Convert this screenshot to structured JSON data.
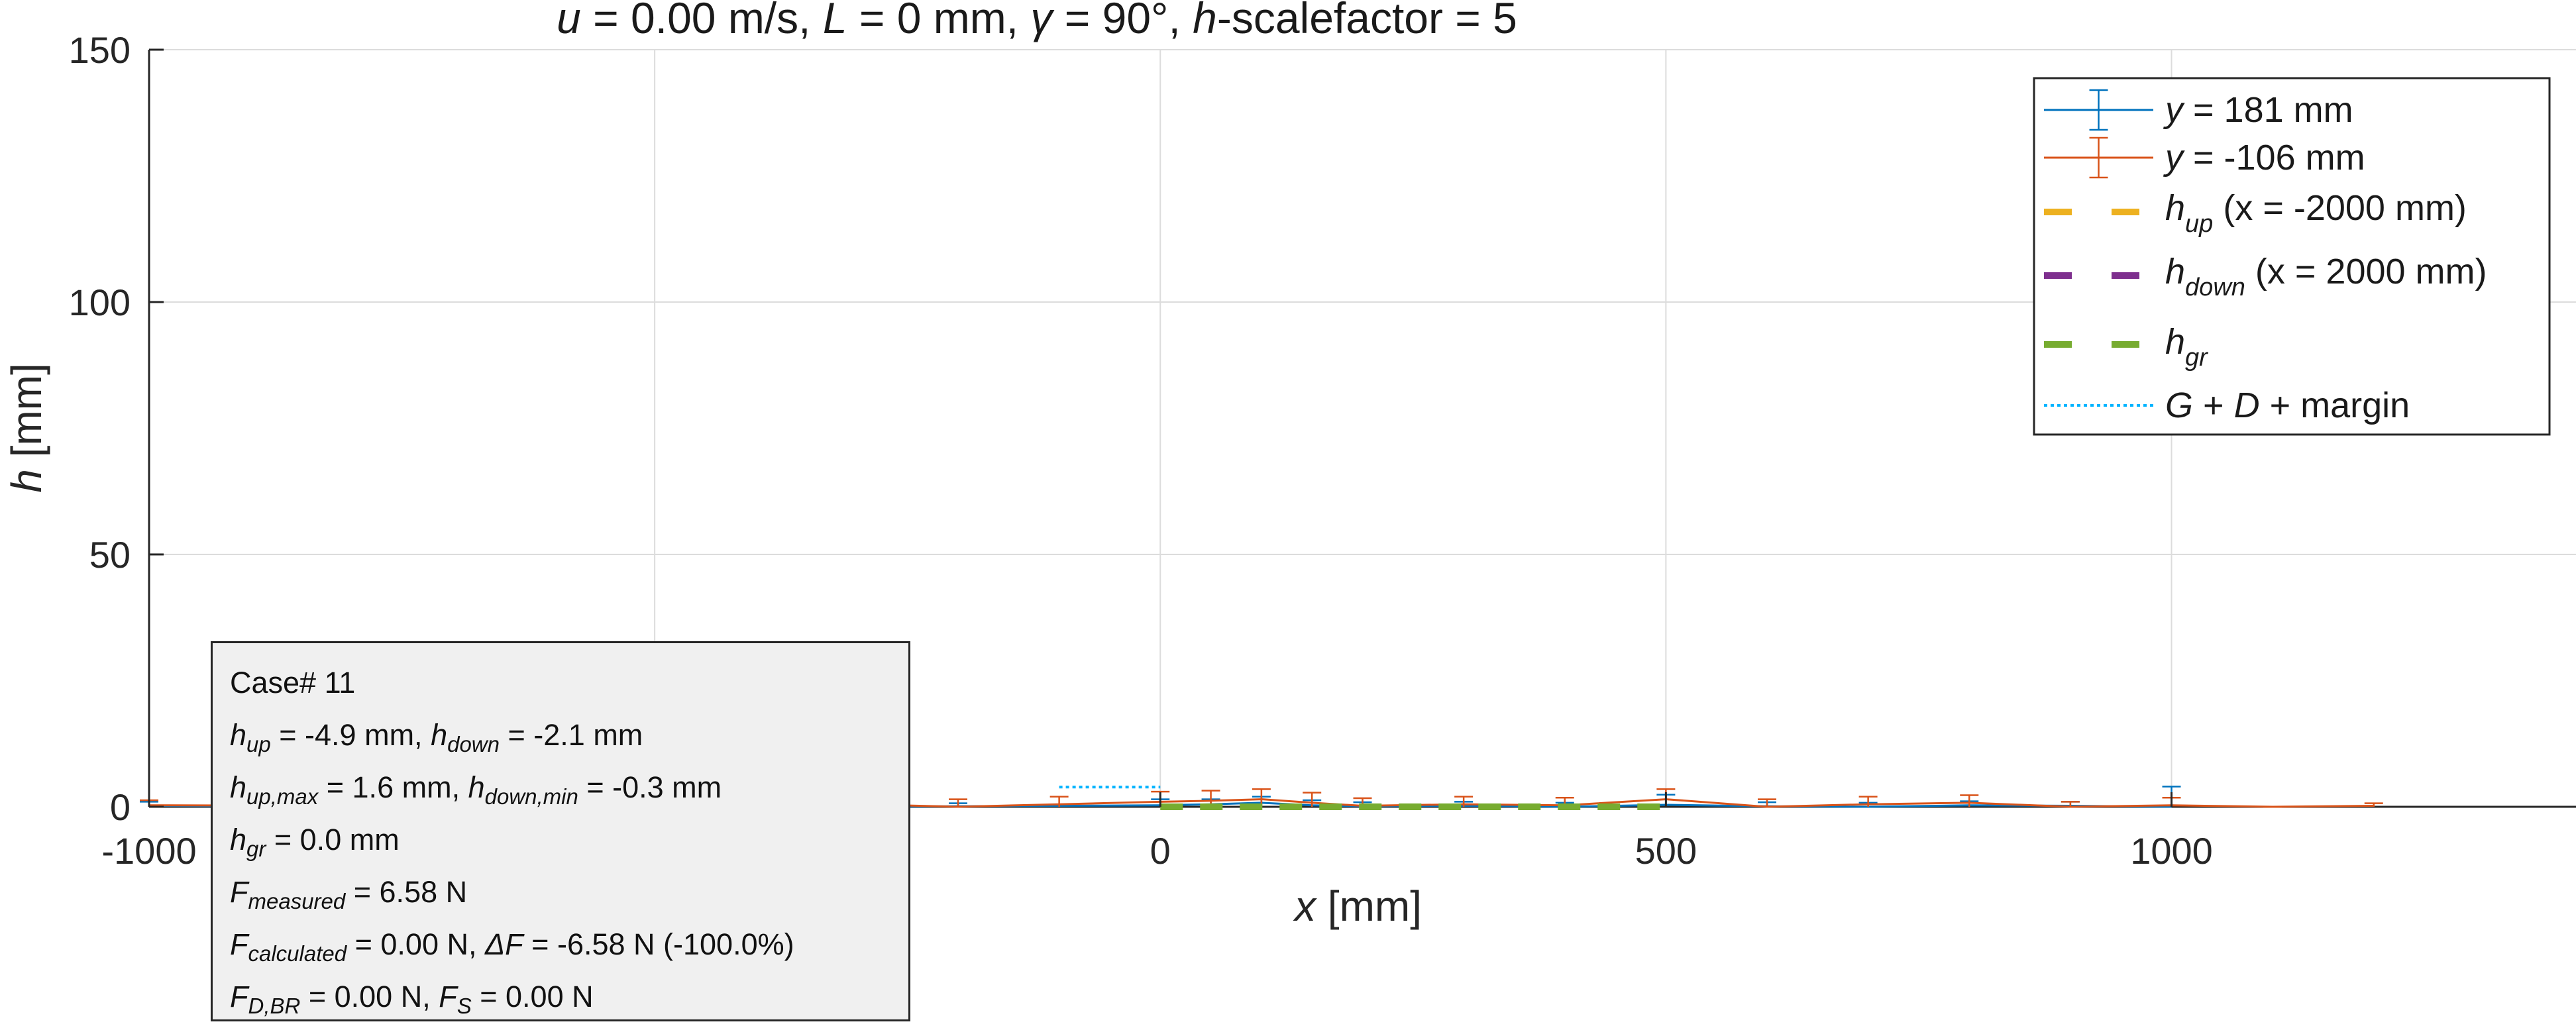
{
  "chart_data": {
    "type": "line",
    "title": "u = 0.00 m/s, L = 0 mm, γ = 90°, h-scalefactor = 5",
    "title_parts": {
      "u": "u",
      "u_rest": " = 0.00 m/s, ",
      "L": "L",
      "L_rest": " = 0 mm, ",
      "gamma": "γ",
      "gamma_rest": " = 90°, ",
      "h": "h",
      "h_rest": "-scalefactor = 5"
    },
    "xlabel": "x [mm]",
    "xlabel_parts": {
      "sym": "x",
      "unit": " [mm]"
    },
    "ylabel": "h [mm]",
    "ylabel_parts": {
      "sym": "h",
      "unit": " [mm]"
    },
    "xlim": [
      -1000,
      1400
    ],
    "ylim": [
      0,
      150
    ],
    "xticks": [
      -1000,
      0,
      500,
      1000
    ],
    "xtick_labels": [
      "-1000",
      "0",
      "500",
      "1000"
    ],
    "yticks": [
      0,
      50,
      100,
      150
    ],
    "ytick_labels": [
      "0",
      "50",
      "100",
      "150"
    ],
    "grid": true,
    "legend_position": "top-right",
    "series": [
      {
        "name": "y = 181 mm",
        "name_parts": {
          "sym": "y",
          "rest": " = 181 mm"
        },
        "color": "#0072bd",
        "style": "solid-errorbar",
        "x": [
          -1000,
          -800,
          -600,
          -400,
          -200,
          0,
          50,
          100,
          150,
          200,
          300,
          400,
          500,
          600,
          700,
          800,
          900,
          1000
        ],
        "y": [
          0.2,
          0.0,
          0.1,
          0.0,
          0.1,
          0.3,
          0.5,
          0.8,
          0.3,
          0.1,
          0.2,
          0.0,
          0.4,
          0.1,
          0.0,
          0.3,
          0.2,
          0.0
        ],
        "err": [
          0.8,
          0.6,
          0.6,
          0.6,
          0.6,
          1.2,
          1.0,
          1.2,
          1.0,
          0.8,
          0.8,
          0.8,
          2.0,
          0.8,
          0.8,
          0.8,
          0.8,
          4.0
        ]
      },
      {
        "name": "y = -106 mm",
        "name_parts": {
          "sym": "y",
          "rest": " = -106 mm"
        },
        "color": "#d95319",
        "style": "solid-errorbar",
        "x": [
          -1000,
          -400,
          -300,
          -200,
          -100,
          0,
          50,
          100,
          150,
          200,
          300,
          400,
          500,
          600,
          700,
          800,
          900,
          1000,
          1100,
          1200
        ],
        "y": [
          0.3,
          0.0,
          0.5,
          0.0,
          0.5,
          1.0,
          1.2,
          1.5,
          0.8,
          0.2,
          0.5,
          0.3,
          1.5,
          0.0,
          0.5,
          0.8,
          0.0,
          0.3,
          0.0,
          0.2
        ],
        "err": [
          1.0,
          1.5,
          1.5,
          1.5,
          1.5,
          2.0,
          2.0,
          2.0,
          2.0,
          1.5,
          1.5,
          1.5,
          2.0,
          1.5,
          1.5,
          1.5,
          1.0,
          1.5,
          0.0,
          0.5
        ]
      },
      {
        "name": "h_up (x = -2000 mm)",
        "name_parts": {
          "sym": "h",
          "sub": "up",
          "rest": " (x = -2000 mm)"
        },
        "color": "#edb120",
        "style": "dashed",
        "x": [],
        "y": []
      },
      {
        "name": "h_down (x = 2000 mm)",
        "name_parts": {
          "sym": "h",
          "sub": "down",
          "rest": " (x = 2000 mm)"
        },
        "color": "#7e2f8e",
        "style": "dashed",
        "x": [],
        "y": []
      },
      {
        "name": "h_gr",
        "name_parts": {
          "sym": "h",
          "sub": "gr",
          "rest": ""
        },
        "color": "#77ac30",
        "style": "dashed",
        "x": [
          0,
          500
        ],
        "y": [
          0,
          0
        ]
      },
      {
        "name": "G + D + margin",
        "name_parts": {
          "sym": "G",
          "mid": " + ",
          "sym2": "D",
          "rest": " + margin"
        },
        "color": "#00b4ff",
        "style": "dotted",
        "x": [
          -100,
          0
        ],
        "y": [
          3.9,
          3.9
        ]
      }
    ]
  },
  "infobox": {
    "case": "Case# 11",
    "line1": {
      "a_sym": "h",
      "a_sub": "up",
      "a_val": " = -4.9 mm, ",
      "b_sym": "h",
      "b_sub": "down",
      "b_val": " = -2.1 mm"
    },
    "line2": {
      "a_sym": "h",
      "a_sub": "up,max",
      "a_val": " = 1.6 mm, ",
      "b_sym": "h",
      "b_sub": "down,min",
      "b_val": " = -0.3 mm"
    },
    "line3": {
      "a_sym": "h",
      "a_sub": "gr",
      "a_val": " = 0.0 mm"
    },
    "line4": {
      "a_sym": "F",
      "a_sub": "measured",
      "a_val": " = 6.58 N"
    },
    "line5": {
      "a_sym": "F",
      "a_sub": "calculated",
      "a_val": " = 0.00 N, ",
      "b_sym": "ΔF",
      "b_val": " = -6.58 N (-100.0%)"
    },
    "line6": {
      "a_sym": "F",
      "a_sub": "D,BR",
      "a_val": " = 0.00 N, ",
      "b_sym": "F",
      "b_sub": "S",
      "b_val": " = 0.00 N"
    }
  }
}
